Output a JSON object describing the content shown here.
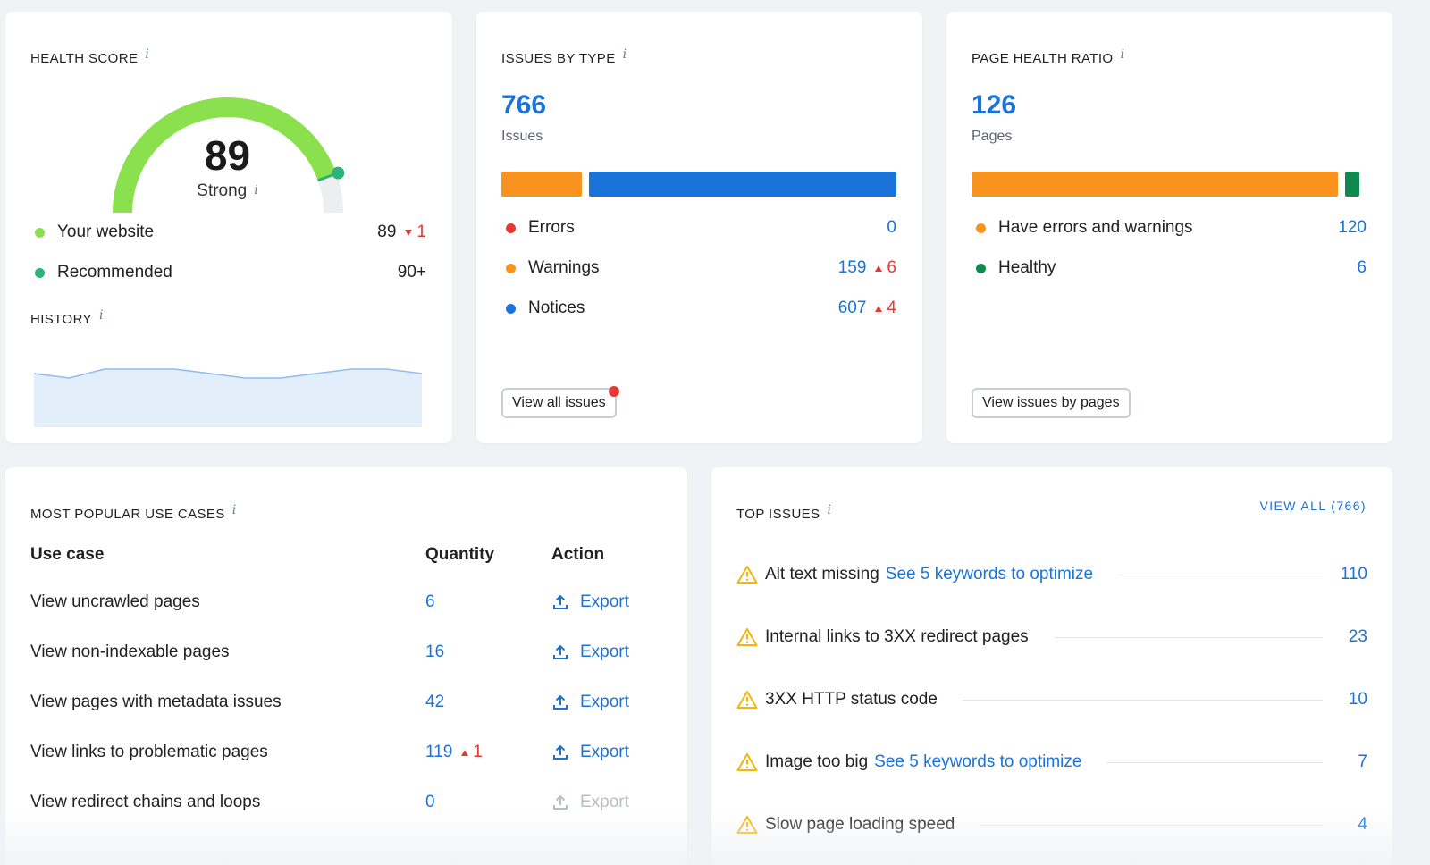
{
  "colors": {
    "accent_blue": "#1a73d9",
    "warning_orange": "#f7931e",
    "error_red": "#e53935",
    "health_green": "#8be04e",
    "recommended_green": "#2db37a",
    "healthy_green": "#0f8a4f"
  },
  "health_score": {
    "title": "HEALTH SCORE",
    "score": "89",
    "rating": "Strong",
    "gauge_fraction": 0.89,
    "your_website_label": "Your website",
    "your_website_value": "89",
    "your_website_delta": "1",
    "recommended_label": "Recommended",
    "recommended_value": "90+",
    "history_title": "HISTORY",
    "history_values": [
      90,
      89,
      91,
      91,
      91,
      90,
      89,
      89,
      90,
      91,
      91,
      90
    ]
  },
  "issues_by_type": {
    "title": "ISSUES BY TYPE",
    "total": "766",
    "total_label": "Issues",
    "bar_values": {
      "warnings": 159,
      "notices": 607
    },
    "items": [
      {
        "label": "Errors",
        "value": "0",
        "delta": "",
        "color": "#e53935"
      },
      {
        "label": "Warnings",
        "value": "159",
        "delta": "6",
        "color": "#f7931e"
      },
      {
        "label": "Notices",
        "value": "607",
        "delta": "4",
        "color": "#1a73d9"
      }
    ],
    "button_label": "View all issues"
  },
  "page_health_ratio": {
    "title": "PAGE HEALTH RATIO",
    "total": "126",
    "total_label": "Pages",
    "bar_values": {
      "errors_warnings": 120,
      "healthy": 6
    },
    "items": [
      {
        "label": "Have errors and warnings",
        "value": "120",
        "color": "#f7931e"
      },
      {
        "label": "Healthy",
        "value": "6",
        "color": "#0f8a4f"
      }
    ],
    "button_label": "View issues by pages"
  },
  "use_cases": {
    "title": "MOST POPULAR USE CASES",
    "columns": [
      "Use case",
      "Quantity",
      "Action"
    ],
    "rows": [
      {
        "label": "View uncrawled pages",
        "qty": "6",
        "delta": "",
        "action": "Export",
        "enabled": true
      },
      {
        "label": "View non-indexable pages",
        "qty": "16",
        "delta": "",
        "action": "Export",
        "enabled": true
      },
      {
        "label": "View pages with metadata issues",
        "qty": "42",
        "delta": "",
        "action": "Export",
        "enabled": true
      },
      {
        "label": "View links to problematic pages",
        "qty": "119",
        "delta": "1",
        "action": "Export",
        "enabled": true
      },
      {
        "label": "View redirect chains and loops",
        "qty": "0",
        "delta": "",
        "action": "Export",
        "enabled": false
      }
    ]
  },
  "top_issues": {
    "title": "TOP ISSUES",
    "view_all_label": "VIEW ALL (766)",
    "items": [
      {
        "label": "Alt text missing",
        "link": "See 5 keywords to optimize",
        "count": "110"
      },
      {
        "label": "Internal links to 3XX redirect pages",
        "link": "",
        "count": "23"
      },
      {
        "label": "3XX HTTP status code",
        "link": "",
        "count": "10"
      },
      {
        "label": "Image too big",
        "link": "See 5 keywords to optimize",
        "count": "7"
      },
      {
        "label": "Slow page loading speed",
        "link": "",
        "count": "4"
      }
    ]
  }
}
